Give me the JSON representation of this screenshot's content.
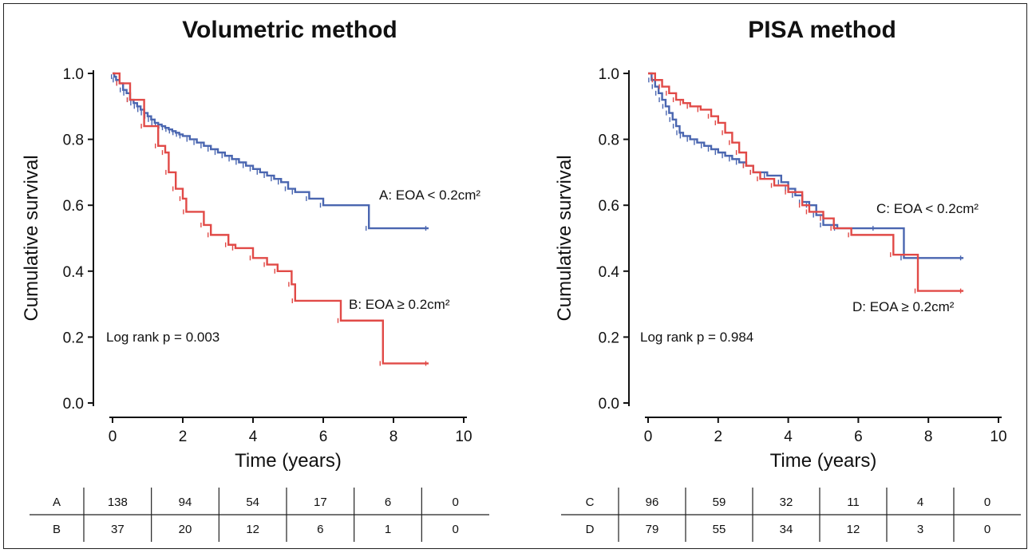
{
  "chart_data": [
    {
      "type": "line",
      "subtype": "kaplan-meier",
      "title": "Volumetric method",
      "xlabel": "Time (years)",
      "ylabel": "Cumulative survival",
      "xlim": [
        0,
        10
      ],
      "ylim": [
        0,
        1.0
      ],
      "xticks": [
        "0",
        "2",
        "4",
        "6",
        "8",
        "10"
      ],
      "yticks": [
        "0.0",
        "0.2",
        "0.4",
        "0.6",
        "0.8",
        "1.0"
      ],
      "grid": false,
      "log_rank": "Log rank p = 0.003",
      "series": [
        {
          "name": "A: EOA < 0.2cm²",
          "color": "#4a66b0",
          "x": [
            0,
            0.05,
            0.1,
            0.2,
            0.3,
            0.4,
            0.5,
            0.6,
            0.7,
            0.8,
            0.9,
            1.0,
            1.1,
            1.2,
            1.3,
            1.4,
            1.5,
            1.6,
            1.7,
            1.8,
            1.9,
            2.0,
            2.2,
            2.4,
            2.6,
            2.8,
            3.0,
            3.2,
            3.4,
            3.6,
            3.8,
            4.0,
            4.2,
            4.4,
            4.6,
            4.8,
            5.0,
            5.2,
            5.6,
            6.0,
            7.3,
            9.0
          ],
          "y": [
            1.0,
            0.99,
            0.98,
            0.97,
            0.95,
            0.94,
            0.92,
            0.91,
            0.9,
            0.89,
            0.88,
            0.87,
            0.86,
            0.85,
            0.845,
            0.84,
            0.835,
            0.83,
            0.825,
            0.82,
            0.815,
            0.81,
            0.8,
            0.79,
            0.78,
            0.77,
            0.76,
            0.75,
            0.74,
            0.73,
            0.72,
            0.71,
            0.7,
            0.69,
            0.68,
            0.67,
            0.65,
            0.64,
            0.62,
            0.6,
            0.53,
            0.53
          ]
        },
        {
          "name": "B: EOA ≥ 0.2cm²",
          "color": "#e14a47",
          "x": [
            0,
            0.2,
            0.5,
            0.9,
            1.3,
            1.5,
            1.6,
            1.8,
            2.0,
            2.1,
            2.6,
            2.8,
            3.3,
            3.5,
            4.0,
            4.4,
            4.7,
            5.1,
            5.2,
            6.5,
            7.7,
            9.0
          ],
          "y": [
            1.0,
            0.97,
            0.92,
            0.84,
            0.78,
            0.76,
            0.7,
            0.65,
            0.62,
            0.58,
            0.54,
            0.51,
            0.48,
            0.47,
            0.44,
            0.42,
            0.4,
            0.36,
            0.31,
            0.25,
            0.12,
            0.12
          ]
        }
      ],
      "risk_table": {
        "rows": [
          {
            "label": "A",
            "values": [
              "138",
              "94",
              "54",
              "17",
              "6",
              "0"
            ]
          },
          {
            "label": "B",
            "values": [
              "37",
              "20",
              "12",
              "6",
              "1",
              "0"
            ]
          }
        ]
      }
    },
    {
      "type": "line",
      "subtype": "kaplan-meier",
      "title": "PISA method",
      "xlabel": "Time (years)",
      "ylabel": "Cumulative survival",
      "xlim": [
        0,
        10
      ],
      "ylim": [
        0,
        1.0
      ],
      "xticks": [
        "0",
        "2",
        "4",
        "6",
        "8",
        "10"
      ],
      "yticks": [
        "0.0",
        "0.2",
        "0.4",
        "0.6",
        "0.8",
        "1.0"
      ],
      "grid": false,
      "log_rank": "Log rank p = 0.984",
      "series": [
        {
          "name": "C: EOA < 0.2cm²",
          "color": "#4a66b0",
          "x": [
            0,
            0.1,
            0.2,
            0.3,
            0.4,
            0.5,
            0.6,
            0.7,
            0.8,
            0.9,
            1.0,
            1.2,
            1.4,
            1.6,
            1.8,
            2.0,
            2.2,
            2.4,
            2.6,
            2.8,
            3.0,
            3.4,
            3.8,
            4.0,
            4.2,
            4.4,
            4.6,
            4.8,
            5.0,
            5.4,
            6.5,
            7.3,
            9.0
          ],
          "y": [
            1.0,
            0.98,
            0.96,
            0.94,
            0.92,
            0.9,
            0.88,
            0.86,
            0.84,
            0.82,
            0.81,
            0.8,
            0.79,
            0.78,
            0.77,
            0.76,
            0.75,
            0.74,
            0.73,
            0.72,
            0.7,
            0.69,
            0.67,
            0.65,
            0.63,
            0.61,
            0.6,
            0.57,
            0.54,
            0.53,
            0.53,
            0.44,
            0.44
          ]
        },
        {
          "name": "D: EOA ≥ 0.2cm²",
          "color": "#e14a47",
          "x": [
            0,
            0.2,
            0.4,
            0.6,
            0.8,
            1.0,
            1.2,
            1.5,
            1.8,
            2.0,
            2.2,
            2.4,
            2.6,
            2.8,
            3.0,
            3.2,
            3.6,
            4.0,
            4.4,
            4.6,
            5.0,
            5.3,
            5.8,
            7.0,
            7.7,
            9.0
          ],
          "y": [
            1.0,
            0.98,
            0.96,
            0.94,
            0.92,
            0.91,
            0.9,
            0.89,
            0.87,
            0.85,
            0.82,
            0.79,
            0.76,
            0.72,
            0.7,
            0.68,
            0.66,
            0.64,
            0.6,
            0.58,
            0.56,
            0.53,
            0.51,
            0.45,
            0.34,
            0.34
          ]
        }
      ],
      "risk_table": {
        "rows": [
          {
            "label": "C",
            "values": [
              "96",
              "59",
              "32",
              "11",
              "4",
              "0"
            ]
          },
          {
            "label": "D",
            "values": [
              "79",
              "55",
              "34",
              "12",
              "3",
              "0"
            ]
          }
        ]
      }
    }
  ]
}
